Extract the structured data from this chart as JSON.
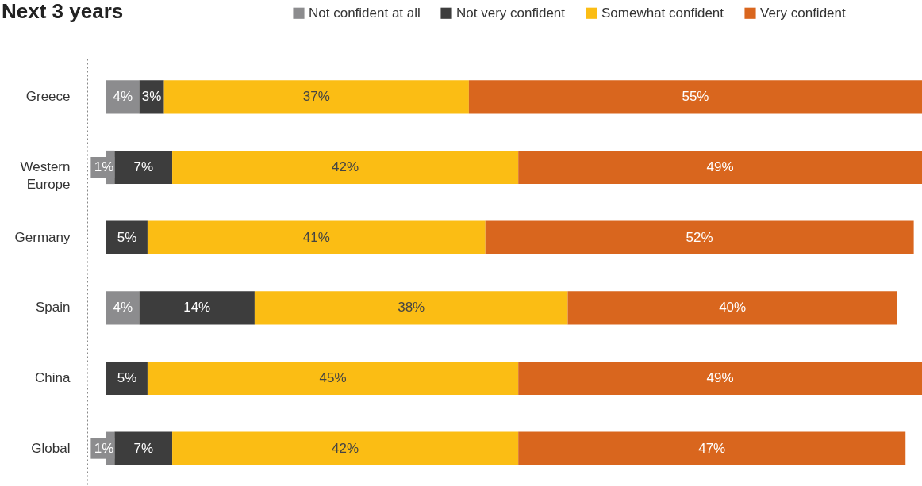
{
  "chart_data": {
    "type": "bar",
    "orientation": "horizontal",
    "stacked": true,
    "title": "Next 3 years",
    "legend": "top right",
    "categories": [
      "Greece",
      "Western Europe",
      "Germany",
      "Spain",
      "China",
      "Global"
    ],
    "series": [
      {
        "name": "Not confident at all",
        "color": "#8c8c8e",
        "values": [
          4,
          1,
          null,
          4,
          null,
          1
        ],
        "value_labels": [
          "4%",
          "1%",
          null,
          "4%",
          null,
          "1%"
        ]
      },
      {
        "name": "Not very confident",
        "color": "#3d3d3d",
        "values": [
          3,
          7,
          5,
          14,
          5,
          7
        ],
        "value_labels": [
          "3%",
          "7%",
          "5%",
          "14%",
          "5%",
          "7%"
        ]
      },
      {
        "name": "Somewhat confident",
        "color": "#fbbd14",
        "values": [
          37,
          42,
          41,
          38,
          45,
          42
        ],
        "value_labels": [
          "37%",
          "42%",
          "41%",
          "38%",
          "45%",
          "42%"
        ]
      },
      {
        "name": "Very confident",
        "color": "#d9661e",
        "values": [
          55,
          49,
          52,
          40,
          49,
          47
        ],
        "value_labels": [
          "55%",
          "49%",
          "52%",
          "40%",
          "49%",
          "47%"
        ]
      }
    ]
  }
}
